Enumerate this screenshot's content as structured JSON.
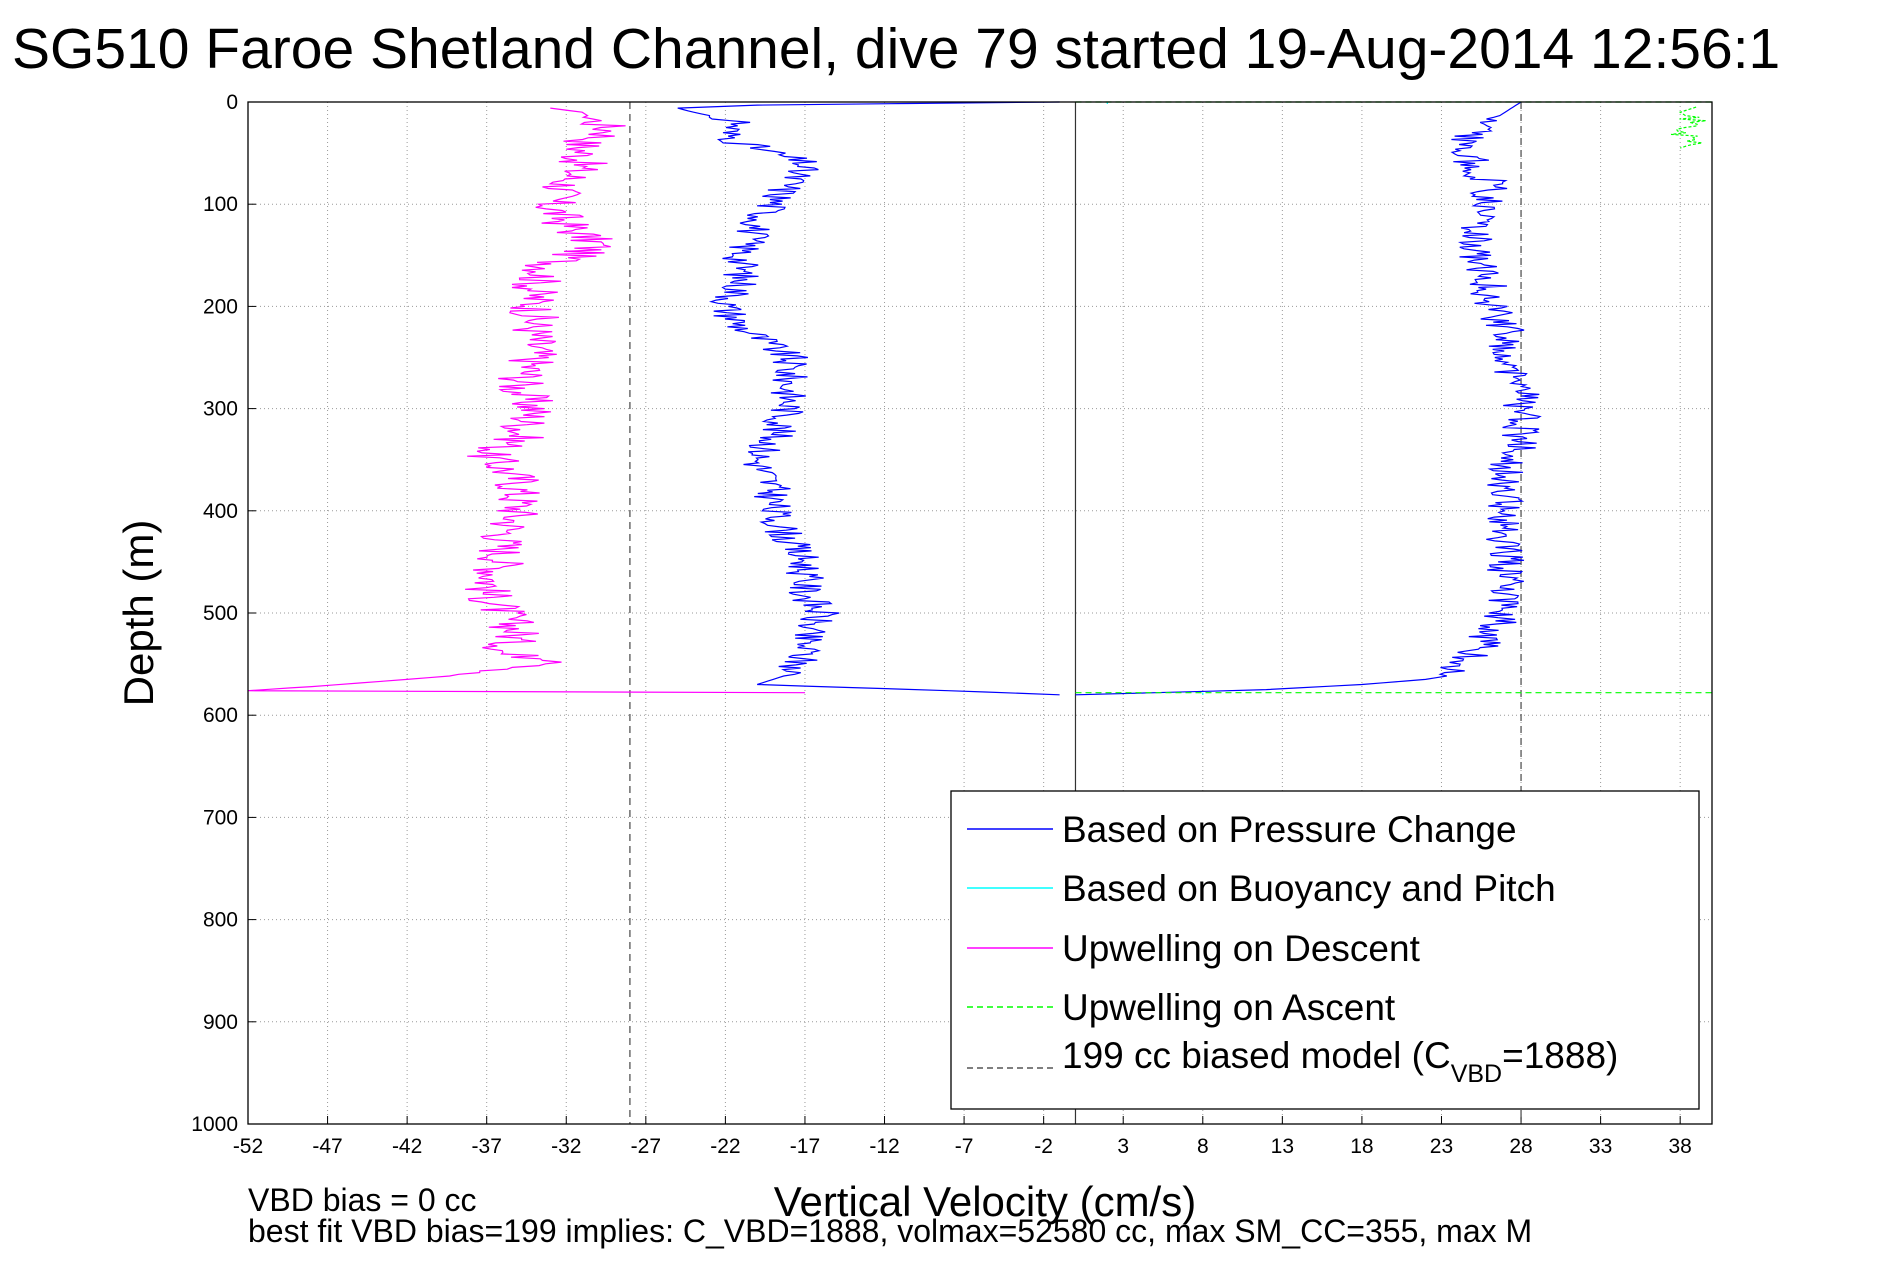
{
  "chart_data": {
    "type": "line",
    "title": "SG510 Faroe Shetland Channel, dive 79 started 19-Aug-2014 12:56:1",
    "xlabel": "Vertical Velocity (cm/s)",
    "ylabel": "Depth (m)",
    "xlim": [
      -52,
      40
    ],
    "ylim": [
      0,
      1000
    ],
    "y_reversed": true,
    "grid": true,
    "xticks": [
      -52,
      -47,
      -42,
      -37,
      -32,
      -27,
      -22,
      -17,
      -12,
      -7,
      -2,
      3,
      8,
      13,
      18,
      23,
      28,
      33,
      38
    ],
    "yticks": [
      0,
      100,
      200,
      300,
      400,
      500,
      600,
      700,
      800,
      900,
      1000
    ],
    "notes": {
      "vbd_bias": "VBD bias = 0 cc",
      "best_fit": "best fit VBD bias=199 implies: C_VBD=1888, volmax=52580 cc, max SM_CC=355, max M"
    },
    "legend": {
      "placement": "bottom-right",
      "entries": [
        {
          "label": "Based on Pressure Change",
          "color": "#0000ff",
          "style": "solid"
        },
        {
          "label": "Based on Buoyancy and Pitch",
          "color": "#00ffff",
          "style": "solid"
        },
        {
          "label": "Upwelling on Descent",
          "color": "#ff00ff",
          "style": "solid"
        },
        {
          "label": "Upwelling on Ascent",
          "color": "#00ff00",
          "style": "dashed"
        },
        {
          "label_main": "199 cc biased model (C",
          "label_sub": "VBD",
          "label_end": "=1888)",
          "color": "#555555",
          "style": "dashed"
        }
      ]
    },
    "reference_lines": {
      "zero_line_x": 0,
      "model_descent_x": -28,
      "model_ascent_x": 28,
      "bottom_depth": 580
    },
    "series": [
      {
        "name": "Based on Pressure Change",
        "color": "#0000ff",
        "descent": {
          "depth": [
            0,
            3,
            6,
            10,
            20,
            30,
            40,
            50,
            60,
            80,
            100,
            120,
            150,
            180,
            200,
            220,
            250,
            280,
            300,
            330,
            350,
            380,
            400,
            430,
            450,
            480,
            500,
            520,
            540,
            560,
            570,
            576,
            580
          ],
          "velocity": [
            -1,
            -20,
            -25,
            -24,
            -21,
            -22,
            -21,
            -19,
            -17,
            -18,
            -19,
            -20,
            -21,
            -21,
            -22,
            -21,
            -18,
            -18,
            -18,
            -19,
            -20,
            -19,
            -19,
            -18,
            -17,
            -17,
            -16,
            -17,
            -17,
            -18,
            -20,
            -8,
            -1
          ]
        },
        "ascent": {
          "depth": [
            580,
            578,
            575,
            570,
            565,
            560,
            550,
            540,
            520,
            500,
            480,
            450,
            420,
            400,
            370,
            350,
            340,
            320,
            300,
            280,
            250,
            220,
            200,
            180,
            150,
            120,
            100,
            80,
            60,
            40,
            30,
            20,
            10,
            0
          ],
          "velocity": [
            0,
            5,
            12,
            18,
            22,
            24,
            24,
            25,
            26,
            27,
            27,
            27,
            27,
            27,
            27,
            27,
            28,
            28,
            28,
            28,
            27,
            27,
            26,
            26,
            25,
            25,
            26,
            26,
            25,
            24,
            25,
            26,
            27,
            28
          ]
        }
      },
      {
        "name": "Based on Buoyancy and Pitch",
        "color": "#00ffff",
        "descent": {
          "depth": [
            0,
            2
          ],
          "velocity": [
            2,
            2
          ]
        },
        "ascent": {
          "depth": [
            578,
            580
          ],
          "velocity": [
            8,
            8
          ]
        }
      },
      {
        "name": "Upwelling on Descent",
        "color": "#ff00ff",
        "depth": [
          6,
          10,
          20,
          30,
          40,
          60,
          80,
          100,
          120,
          140,
          160,
          180,
          200,
          220,
          250,
          280,
          300,
          330,
          345,
          370,
          400,
          430,
          450,
          480,
          500,
          520,
          540,
          548,
          555,
          560,
          565,
          572,
          576,
          578
        ],
        "velocity": [
          -33,
          -31,
          -30,
          -29,
          -31,
          -31,
          -32,
          -33,
          -32,
          -30,
          -33,
          -34,
          -34,
          -34,
          -34,
          -35,
          -34,
          -35,
          -37,
          -35,
          -35,
          -36,
          -36,
          -37,
          -36,
          -35,
          -36,
          -31,
          -35,
          -38,
          -42,
          -48,
          -52,
          -17
        ]
      },
      {
        "name": "Upwelling on Ascent",
        "color": "#00ff00",
        "near_surface": {
          "depth": [
            5,
            10,
            20,
            30,
            40,
            45
          ],
          "velocity": [
            39,
            38,
            39,
            38,
            39,
            38
          ]
        },
        "bottom": {
          "depth": [
            578,
            578
          ],
          "velocity": [
            0,
            40
          ]
        },
        "surface": {
          "depth": [
            0,
            0
          ],
          "velocity": [
            0,
            40
          ]
        }
      }
    ]
  }
}
